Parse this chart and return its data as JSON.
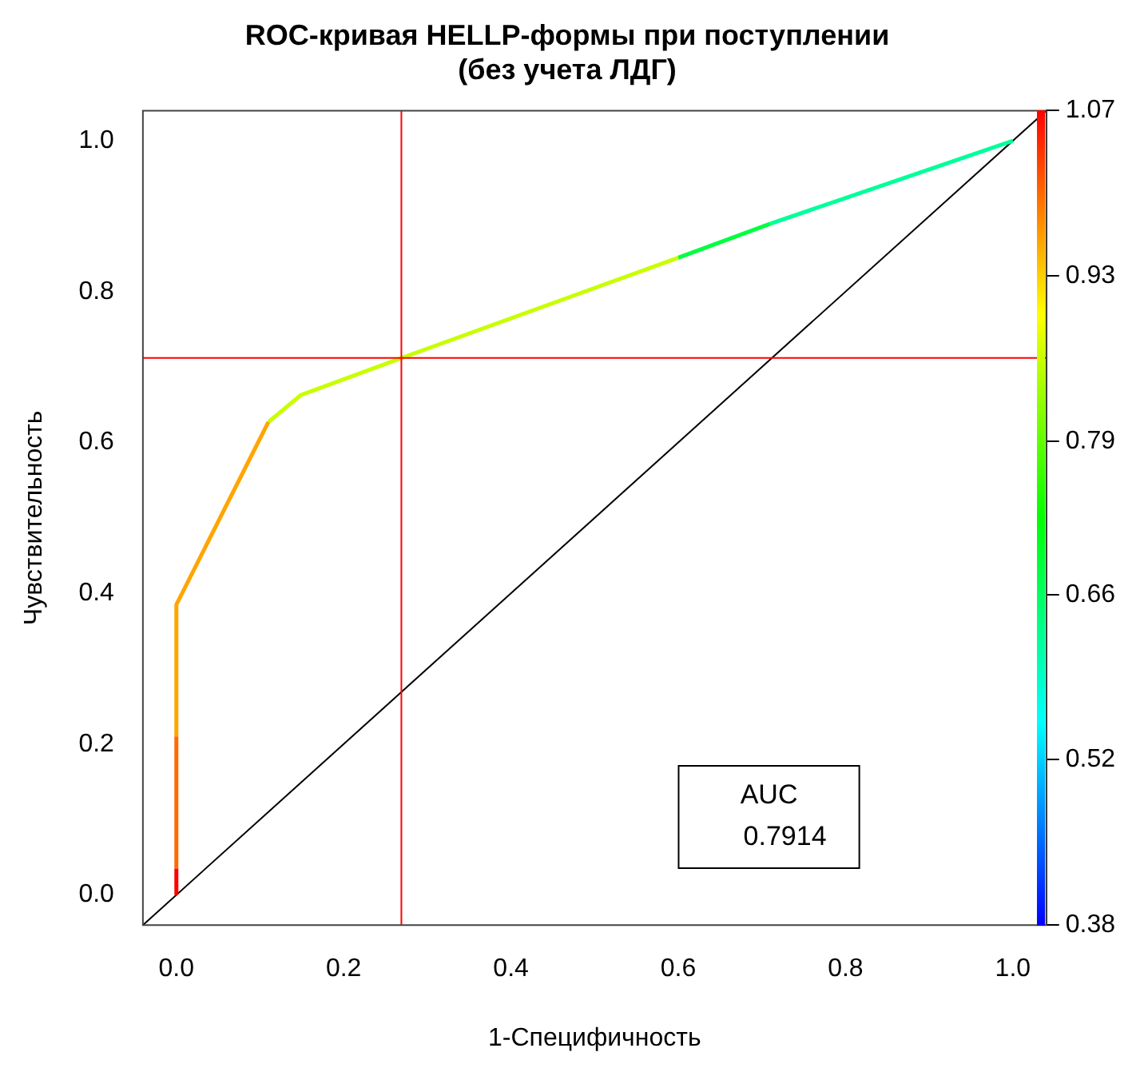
{
  "chart_data": {
    "type": "line",
    "title": "ROC-кривая HELLP-формы при поступлении\n(без учета ЛДГ)",
    "xlabel": "1-Специфичность",
    "ylabel": "Чувствительность",
    "series": [
      {
        "type": "line",
        "color": "#ff0000",
        "x": [
          0,
          0
        ],
        "values": [
          0,
          0.035
        ]
      },
      {
        "type": "line",
        "color": "#ff6a00",
        "x": [
          0,
          0
        ],
        "values": [
          0.035,
          0.21
        ]
      },
      {
        "type": "line",
        "color": "#ffa500",
        "x": [
          0,
          0,
          0.11
        ],
        "values": [
          0.21,
          0.385,
          0.627
        ]
      },
      {
        "type": "line",
        "color": "#c8ff00",
        "x": [
          0.11,
          0.149,
          0.269,
          0.6
        ],
        "values": [
          0.627,
          0.663,
          0.712,
          0.845
        ]
      },
      {
        "type": "line",
        "color": "#00ff40",
        "x": [
          0.6,
          0.71
        ],
        "values": [
          0.845,
          0.89
        ]
      },
      {
        "type": "line",
        "color": "#00ff99",
        "x": [
          0.71,
          1
        ],
        "values": [
          0.89,
          1
        ]
      },
      {
        "type": "line",
        "color": "#000000",
        "x": [
          -0.04,
          1.04
        ],
        "values": [
          -0.04,
          1.04
        ]
      }
    ],
    "xlim": [
      -0.04,
      1.04
    ],
    "ylim": [
      -0.04,
      1.04
    ],
    "xticks": [
      {
        "value": 0,
        "label": "0.0"
      },
      0.2,
      0.4,
      0.6,
      0.8,
      {
        "value": 1,
        "label": "1.0"
      }
    ],
    "yticks": [
      {
        "value": 0,
        "label": "0.0"
      },
      0.2,
      0.4,
      0.6,
      0.8,
      {
        "value": 1,
        "label": "1.0"
      }
    ],
    "y2lim": [
      0.38,
      1.07
    ],
    "y2ticks": [
      0.38,
      0.52,
      0.66,
      0.79,
      0.93,
      1.07
    ],
    "ref_lines": [
      {
        "axis": "x",
        "value": 0.269,
        "color": "#ff0000"
      },
      {
        "axis": "y",
        "value": 0.712,
        "color": "#ff0000"
      }
    ],
    "annotations": [
      "AUC",
      "0.7914"
    ],
    "marker": "none",
    "grid": false
  }
}
